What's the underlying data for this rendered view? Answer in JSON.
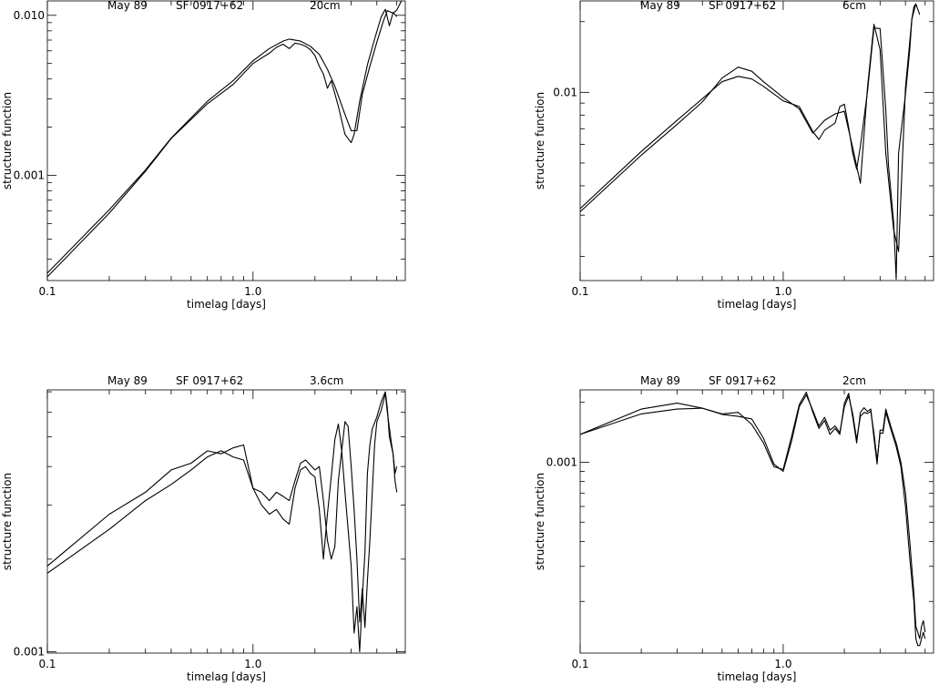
{
  "chart_data": [
    {
      "type": "line",
      "title": {
        "epoch": "May 89",
        "source": "SF 0917+62",
        "band": "20cm"
      },
      "xlabel": "timelag [days]",
      "ylabel": "structure function",
      "xscale": "log",
      "yscale": "log",
      "xlim": [
        0.1,
        5.5
      ],
      "ylim": [
        0.00022,
        0.0123
      ],
      "xticks": [
        {
          "value": 0.1,
          "label": "0.1"
        },
        {
          "value": 1.0,
          "label": "1.0"
        }
      ],
      "yticks": [
        {
          "value": 0.001,
          "label": "0.001"
        },
        {
          "value": 0.01,
          "label": "0.010"
        }
      ],
      "series": [
        {
          "x": [
            0.1,
            0.2,
            0.3,
            0.4,
            0.6,
            0.8,
            1.0,
            1.2,
            1.4,
            1.5,
            1.7,
            1.9,
            2.1,
            2.3,
            2.5,
            2.8,
            3.0,
            3.2,
            3.4,
            3.7,
            4.0,
            4.3,
            4.5,
            4.8,
            5.0,
            5.3
          ],
          "y": [
            0.000245,
            0.00061,
            0.00108,
            0.00171,
            0.0029,
            0.0039,
            0.0052,
            0.0062,
            0.0069,
            0.0071,
            0.0069,
            0.0064,
            0.0057,
            0.0046,
            0.0036,
            0.0024,
            0.0019,
            0.0019,
            0.0032,
            0.0048,
            0.0068,
            0.0092,
            0.0107,
            0.0103,
            0.0108,
            0.0125
          ]
        },
        {
          "x": [
            0.1,
            0.2,
            0.3,
            0.4,
            0.6,
            0.8,
            1.0,
            1.2,
            1.3,
            1.4,
            1.5,
            1.6,
            1.7,
            1.8,
            1.9,
            2.0,
            2.1,
            2.2,
            2.3,
            2.4,
            2.6,
            2.8,
            3.0,
            3.1,
            3.3,
            3.6,
            3.9,
            4.2,
            4.4,
            4.6,
            4.8,
            5.0
          ],
          "y": [
            0.000232,
            0.00058,
            0.00106,
            0.0017,
            0.0028,
            0.0037,
            0.005,
            0.0058,
            0.0063,
            0.0066,
            0.0062,
            0.0067,
            0.0066,
            0.0064,
            0.0061,
            0.0056,
            0.0048,
            0.0043,
            0.0035,
            0.0039,
            0.0027,
            0.0018,
            0.0016,
            0.0018,
            0.0029,
            0.0049,
            0.0071,
            0.0098,
            0.0109,
            0.0086,
            0.0104,
            0.0098
          ]
        }
      ]
    },
    {
      "type": "line",
      "title": {
        "epoch": "May 89",
        "source": "SF 0917+62",
        "band": "6cm"
      },
      "xlabel": "timelag [days]",
      "ylabel": "structure function",
      "xscale": "log",
      "yscale": "log",
      "xlim": [
        0.1,
        5.5
      ],
      "ylim": [
        0.00158,
        0.0245
      ],
      "xticks": [
        {
          "value": 0.1,
          "label": "0.1"
        },
        {
          "value": 1.0,
          "label": "1.0"
        }
      ],
      "yticks": [
        {
          "value": 0.01,
          "label": "0.01"
        }
      ],
      "series": [
        {
          "x": [
            0.1,
            0.2,
            0.3,
            0.4,
            0.5,
            0.6,
            0.7,
            0.8,
            1.0,
            1.2,
            1.4,
            1.6,
            1.8,
            2.0,
            2.2,
            2.4,
            2.6,
            2.8,
            3.0,
            3.2,
            3.5,
            3.7,
            4.0,
            4.3,
            4.5,
            4.7
          ],
          "y": [
            0.0031,
            0.0054,
            0.0073,
            0.0091,
            0.0115,
            0.0128,
            0.0123,
            0.0111,
            0.0095,
            0.0085,
            0.0067,
            0.0076,
            0.0081,
            0.0083,
            0.0058,
            0.0041,
            0.0105,
            0.0195,
            0.0152,
            0.0055,
            0.0026,
            0.0021,
            0.0105,
            0.0205,
            0.0238,
            0.0214
          ]
        },
        {
          "x": [
            0.1,
            0.2,
            0.3,
            0.4,
            0.5,
            0.6,
            0.7,
            0.8,
            1.0,
            1.2,
            1.4,
            1.5,
            1.6,
            1.8,
            1.9,
            2.0,
            2.1,
            2.2,
            2.3,
            2.4,
            2.6,
            2.8,
            3.0,
            3.2,
            3.3,
            3.5,
            3.6,
            3.7,
            4.0,
            4.2,
            4.3,
            4.4,
            4.5
          ],
          "y": [
            0.0032,
            0.0056,
            0.0076,
            0.0094,
            0.0111,
            0.0117,
            0.0114,
            0.0106,
            0.0092,
            0.0087,
            0.0068,
            0.0063,
            0.0069,
            0.0074,
            0.0087,
            0.0089,
            0.0071,
            0.0055,
            0.0047,
            0.0059,
            0.0101,
            0.0188,
            0.0187,
            0.0084,
            0.0049,
            0.0028,
            0.0016,
            0.0055,
            0.0098,
            0.0152,
            0.0205,
            0.0231,
            0.0238
          ]
        }
      ]
    },
    {
      "type": "line",
      "title": {
        "epoch": "May 89",
        "source": "SF 0917+62",
        "band": "3.6cm"
      },
      "xlabel": "timelag [days]",
      "ylabel": "structure function",
      "xscale": "log",
      "yscale": "log",
      "xlim": [
        0.1,
        5.5
      ],
      "ylim": [
        0.00099,
        0.0071
      ],
      "xticks": [
        {
          "value": 0.1,
          "label": "0.1"
        },
        {
          "value": 1.0,
          "label": "1.0"
        }
      ],
      "yticks": [
        {
          "value": 0.001,
          "label": "0.001"
        }
      ],
      "series": [
        {
          "x": [
            0.1,
            0.2,
            0.3,
            0.4,
            0.5,
            0.6,
            0.7,
            0.8,
            0.9,
            1.0,
            1.1,
            1.2,
            1.3,
            1.4,
            1.5,
            1.6,
            1.7,
            1.8,
            2.0,
            2.1,
            2.2,
            2.3,
            2.4,
            2.5,
            2.6,
            2.8,
            2.9,
            3.0,
            3.1,
            3.2,
            3.3,
            3.4,
            3.5,
            3.6,
            3.7,
            3.9,
            4.0,
            4.2,
            4.4,
            4.5,
            4.7,
            4.8,
            4.9,
            5.0
          ],
          "y": [
            0.0019,
            0.0028,
            0.0033,
            0.0039,
            0.0041,
            0.0045,
            0.0044,
            0.0046,
            0.0047,
            0.0034,
            0.0033,
            0.0031,
            0.0033,
            0.0032,
            0.0031,
            0.0036,
            0.0041,
            0.0042,
            0.0039,
            0.004,
            0.0031,
            0.0023,
            0.002,
            0.0022,
            0.0036,
            0.0056,
            0.0054,
            0.004,
            0.0029,
            0.002,
            0.00125,
            0.0016,
            0.0012,
            0.0017,
            0.0023,
            0.0047,
            0.0056,
            0.0061,
            0.0069,
            0.006,
            0.0048,
            0.0044,
            0.0038,
            0.004
          ]
        },
        {
          "x": [
            0.1,
            0.2,
            0.3,
            0.4,
            0.5,
            0.6,
            0.7,
            0.8,
            0.9,
            1.0,
            1.1,
            1.2,
            1.3,
            1.4,
            1.5,
            1.6,
            1.7,
            1.8,
            1.9,
            2.0,
            2.1,
            2.2,
            2.3,
            2.4,
            2.5,
            2.6,
            2.7,
            2.8,
            2.9,
            3.0,
            3.1,
            3.2,
            3.3,
            3.4,
            3.5,
            3.6,
            3.7,
            3.8,
            4.0,
            4.2,
            4.4,
            4.5,
            4.6,
            4.8,
            4.9,
            5.0
          ],
          "y": [
            0.0018,
            0.0025,
            0.0031,
            0.0035,
            0.0039,
            0.0043,
            0.0045,
            0.0043,
            0.0042,
            0.0034,
            0.003,
            0.0028,
            0.0029,
            0.0027,
            0.0026,
            0.0034,
            0.0039,
            0.004,
            0.0038,
            0.0037,
            0.0029,
            0.002,
            0.0028,
            0.0037,
            0.0049,
            0.0055,
            0.0045,
            0.0033,
            0.0025,
            0.0019,
            0.00115,
            0.0014,
            0.001,
            0.0015,
            0.0021,
            0.0038,
            0.0047,
            0.0053,
            0.0058,
            0.0065,
            0.007,
            0.0062,
            0.005,
            0.0044,
            0.0036,
            0.0033
          ]
        }
      ]
    },
    {
      "type": "line",
      "title": {
        "epoch": "May 89",
        "source": "SF 0917+62",
        "band": "2cm"
      },
      "xlabel": "timelag [days]",
      "ylabel": "structure function",
      "xscale": "log",
      "yscale": "log",
      "xlim": [
        0.1,
        5.5
      ],
      "ylim": [
        0.00011,
        0.00231
      ],
      "xticks": [
        {
          "value": 0.1,
          "label": "0.1"
        },
        {
          "value": 1.0,
          "label": "1.0"
        }
      ],
      "yticks": [
        {
          "value": 0.001,
          "label": "0.001"
        }
      ],
      "series": [
        {
          "x": [
            0.1,
            0.2,
            0.3,
            0.4,
            0.5,
            0.6,
            0.7,
            0.8,
            0.9,
            1.0,
            1.1,
            1.2,
            1.3,
            1.4,
            1.5,
            1.6,
            1.7,
            1.8,
            1.9,
            2.0,
            2.1,
            2.2,
            2.3,
            2.4,
            2.5,
            2.6,
            2.7,
            2.8,
            2.9,
            3.0,
            3.1,
            3.2,
            3.4,
            3.6,
            3.8,
            4.0,
            4.2,
            4.4,
            4.5,
            4.6,
            4.7,
            4.8,
            4.9,
            5.0
          ],
          "y": [
            0.00138,
            0.00185,
            0.00198,
            0.00187,
            0.00175,
            0.00178,
            0.00155,
            0.00125,
            0.00095,
            0.00092,
            0.00135,
            0.00195,
            0.00225,
            0.00178,
            0.00148,
            0.00162,
            0.00138,
            0.00148,
            0.00138,
            0.00198,
            0.00222,
            0.00168,
            0.00125,
            0.00178,
            0.00188,
            0.0018,
            0.00185,
            0.00132,
            0.00098,
            0.00145,
            0.00145,
            0.00185,
            0.0015,
            0.00125,
            0.001,
            0.0007,
            0.0004,
            0.00022,
            0.00015,
            0.00014,
            0.00013,
            0.00015,
            0.00016,
            0.00014
          ]
        },
        {
          "x": [
            0.1,
            0.2,
            0.3,
            0.4,
            0.5,
            0.6,
            0.7,
            0.8,
            0.9,
            1.0,
            1.1,
            1.2,
            1.3,
            1.4,
            1.5,
            1.6,
            1.7,
            1.8,
            1.9,
            2.0,
            2.1,
            2.2,
            2.3,
            2.4,
            2.5,
            2.6,
            2.7,
            2.8,
            2.9,
            3.0,
            3.1,
            3.2,
            3.4,
            3.6,
            3.8,
            4.0,
            4.2,
            4.4,
            4.5,
            4.6,
            4.7,
            4.8,
            4.9,
            5.0
          ],
          "y": [
            0.00138,
            0.00175,
            0.00185,
            0.00187,
            0.00174,
            0.0017,
            0.00165,
            0.00132,
            0.00098,
            0.0009,
            0.00128,
            0.0019,
            0.00218,
            0.00182,
            0.00152,
            0.00168,
            0.00145,
            0.00152,
            0.00141,
            0.0019,
            0.00215,
            0.00175,
            0.0013,
            0.0017,
            0.00178,
            0.00176,
            0.0018,
            0.0014,
            0.00102,
            0.0014,
            0.0014,
            0.00178,
            0.00145,
            0.0012,
            0.00095,
            0.0006,
            0.00033,
            0.0002,
            0.00013,
            0.00012,
            0.00012,
            0.00013,
            0.00014,
            0.00013
          ]
        }
      ]
    }
  ]
}
